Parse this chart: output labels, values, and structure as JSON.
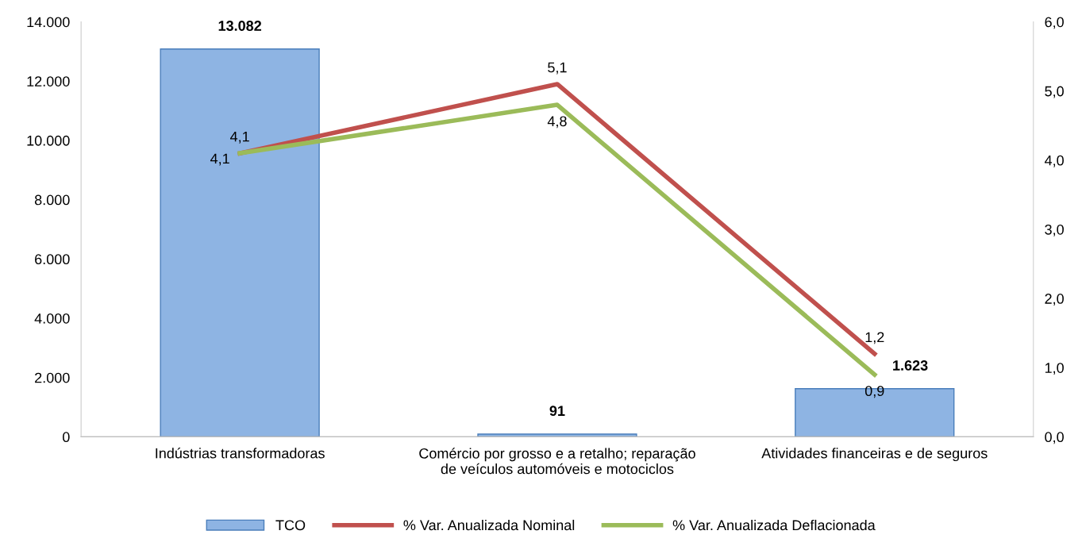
{
  "chart_data": {
    "type": "bar",
    "categories": [
      "Indústrias transformadoras",
      "Comércio por grosso e a retalho; reparação\nde veículos automóveis e motociclos",
      "Atividades financeiras e de seguros"
    ],
    "series": [
      {
        "name": "TCO",
        "color": "#8eb4e3",
        "values": [
          13082,
          91,
          1623
        ],
        "value_labels": [
          "13.082",
          "91",
          "1.623"
        ]
      },
      {
        "name": "% Var. Anualizada Nominal",
        "type": "line",
        "axis": "y2",
        "color": "#c0504d",
        "values": [
          4.1,
          5.1,
          1.2
        ],
        "value_labels": [
          "4,1",
          "5,1",
          "1,2"
        ]
      },
      {
        "name": "% Var. Anualizada Deflacionada",
        "type": "line",
        "axis": "y2",
        "color": "#9bbb59",
        "values": [
          4.1,
          4.8,
          0.9
        ],
        "value_labels": [
          "4,1",
          "4,8",
          "0,9"
        ]
      }
    ],
    "ylim": [
      0,
      14000
    ],
    "yticks": [
      {
        "value": 0,
        "label": "0"
      },
      {
        "value": 2000,
        "label": "2.000"
      },
      {
        "value": 4000,
        "label": "4.000"
      },
      {
        "value": 6000,
        "label": "6.000"
      },
      {
        "value": 8000,
        "label": "8.000"
      },
      {
        "value": 10000,
        "label": "10.000"
      },
      {
        "value": 12000,
        "label": "12.000"
      },
      {
        "value": 14000,
        "label": "14.000"
      }
    ],
    "y2lim": [
      0,
      6
    ],
    "y2ticks": [
      {
        "value": 0,
        "label": "0,0"
      },
      {
        "value": 1,
        "label": "1,0"
      },
      {
        "value": 2,
        "label": "2,0"
      },
      {
        "value": 3,
        "label": "3,0"
      },
      {
        "value": 4,
        "label": "4,0"
      },
      {
        "value": 5,
        "label": "5,0"
      },
      {
        "value": 6,
        "label": "6,0"
      }
    ],
    "legend": "bottom",
    "grid": false,
    "marker": "none",
    "line_style": "solid"
  }
}
